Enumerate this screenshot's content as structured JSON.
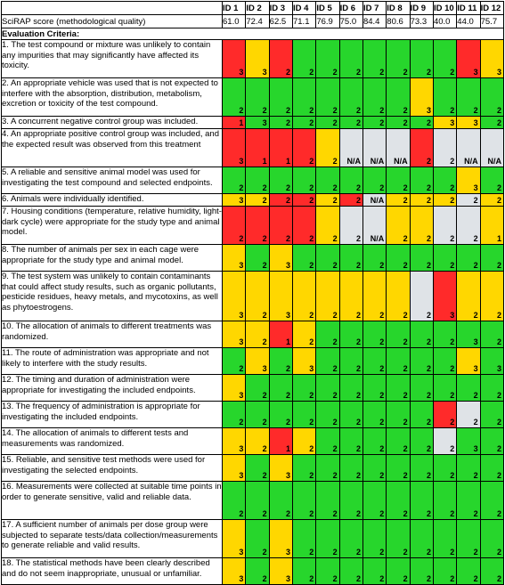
{
  "columns": [
    "ID 1",
    "ID 2",
    "ID 3",
    "ID 4",
    "ID 5",
    "ID 6",
    "ID 7",
    "ID 8",
    "ID 9",
    "ID 10",
    "ID 11",
    "ID 12"
  ],
  "score_label": "SciRAP score (methodological quality)",
  "scores": [
    "61.0",
    "72.4",
    "62.5",
    "71.1",
    "76.9",
    "75.0",
    "84.4",
    "80.6",
    "73.3",
    "40.0",
    "44.0",
    "75.7"
  ],
  "criteria_heading": "Evaluation Criteria:",
  "colors": {
    "red": "#ff2a2a",
    "yellow": "#ffd700",
    "green": "#27d62c",
    "na": "#dfe3e7"
  },
  "rows": [
    {
      "text": "1. The test compound or mixture was unlikely to contain any impurities that may significantly have affected its toxicity.",
      "values": [
        "3",
        "3",
        "2",
        "2",
        "2",
        "2",
        "2",
        "2",
        "2",
        "2",
        "3",
        "3"
      ],
      "colors": [
        "red",
        "yellow",
        "red",
        "green",
        "green",
        "green",
        "green",
        "green",
        "green",
        "green",
        "red",
        "yellow"
      ]
    },
    {
      "text": "2. An appropriate vehicle was used that is not expected to interfere with the absorption, distribution, metabolism, excretion or toxicity of the test compound.",
      "values": [
        "2",
        "2",
        "2",
        "2",
        "2",
        "2",
        "2",
        "2",
        "3",
        "2",
        "2",
        "2"
      ],
      "colors": [
        "green",
        "green",
        "green",
        "green",
        "green",
        "green",
        "green",
        "green",
        "yellow",
        "green",
        "green",
        "green"
      ]
    },
    {
      "text": "3. A concurrent negative control group was included.",
      "values": [
        "1",
        "3",
        "2",
        "2",
        "2",
        "2",
        "2",
        "2",
        "2",
        "3",
        "3",
        "2"
      ],
      "colors": [
        "red",
        "green",
        "green",
        "green",
        "green",
        "green",
        "green",
        "green",
        "green",
        "yellow",
        "yellow",
        "green"
      ]
    },
    {
      "text": "4. An appropriate positive control group was included, and the expected result was observed from this treatment",
      "values": [
        "3",
        "1",
        "1",
        "2",
        "2",
        "N/A",
        "N/A",
        "N/A",
        "2",
        "2",
        "N/A",
        "N/A"
      ],
      "colors": [
        "red",
        "red",
        "red",
        "red",
        "yellow",
        "na",
        "na",
        "na",
        "red",
        "na",
        "na",
        "na"
      ]
    },
    {
      "text": "5. A reliable and sensitive animal model was used for investigating the test compound and selected endpoints.",
      "values": [
        "2",
        "2",
        "2",
        "2",
        "2",
        "2",
        "2",
        "2",
        "2",
        "2",
        "3",
        "2"
      ],
      "colors": [
        "green",
        "green",
        "green",
        "green",
        "green",
        "green",
        "green",
        "green",
        "green",
        "green",
        "yellow",
        "green"
      ]
    },
    {
      "text": "6. Animals were individually identified.",
      "values": [
        "3",
        "2",
        "2",
        "2",
        "2",
        "2",
        "N/A",
        "2",
        "2",
        "2",
        "2",
        "2"
      ],
      "colors": [
        "yellow",
        "yellow",
        "red",
        "red",
        "yellow",
        "red",
        "na",
        "yellow",
        "yellow",
        "yellow",
        "na",
        "yellow"
      ]
    },
    {
      "text": "7. Housing conditions (temperature, relative humidity, light-dark cycle) were appropriate for the study type and animal model.",
      "values": [
        "2",
        "2",
        "2",
        "2",
        "2",
        "2",
        "N/A",
        "2",
        "2",
        "2",
        "2",
        "1"
      ],
      "colors": [
        "red",
        "red",
        "red",
        "red",
        "yellow",
        "na",
        "na",
        "yellow",
        "yellow",
        "na",
        "na",
        "yellow"
      ]
    },
    {
      "text": "8. The number of animals per sex in each cage were appropriate for the study type and animal model.",
      "values": [
        "3",
        "2",
        "3",
        "2",
        "2",
        "2",
        "2",
        "2",
        "2",
        "2",
        "2",
        "2"
      ],
      "colors": [
        "yellow",
        "green",
        "yellow",
        "green",
        "green",
        "green",
        "green",
        "green",
        "green",
        "green",
        "green",
        "green"
      ]
    },
    {
      "text": "9. The test system was unlikely to contain contaminants that could affect study results, such as organic pollutants, pesticide residues, heavy metals, and mycotoxins, as well as phytoestrogens.",
      "values": [
        "3",
        "2",
        "3",
        "2",
        "2",
        "2",
        "2",
        "2",
        "2",
        "3",
        "2",
        "2"
      ],
      "colors": [
        "yellow",
        "yellow",
        "yellow",
        "yellow",
        "yellow",
        "yellow",
        "yellow",
        "yellow",
        "na",
        "red",
        "yellow",
        "yellow"
      ]
    },
    {
      "text": "10. The allocation of animals to different treatments was randomized.",
      "values": [
        "3",
        "2",
        "1",
        "2",
        "2",
        "2",
        "2",
        "2",
        "2",
        "2",
        "3",
        "2"
      ],
      "colors": [
        "yellow",
        "yellow",
        "red",
        "yellow",
        "green",
        "green",
        "green",
        "green",
        "green",
        "green",
        "green",
        "green"
      ]
    },
    {
      "text": "11. The route of administration was appropriate and not likely to interfere with the study results.",
      "values": [
        "2",
        "3",
        "2",
        "3",
        "2",
        "2",
        "2",
        "2",
        "2",
        "2",
        "3",
        "3"
      ],
      "colors": [
        "green",
        "yellow",
        "green",
        "yellow",
        "green",
        "green",
        "green",
        "green",
        "green",
        "green",
        "yellow",
        "green"
      ]
    },
    {
      "text": "12. The timing and duration of administration were appropriate for investigating the included endpoints.",
      "values": [
        "3",
        "2",
        "2",
        "2",
        "2",
        "2",
        "2",
        "2",
        "2",
        "2",
        "2",
        "2"
      ],
      "colors": [
        "yellow",
        "green",
        "green",
        "green",
        "green",
        "green",
        "green",
        "green",
        "green",
        "green",
        "green",
        "green"
      ]
    },
    {
      "text": "13. The frequency of administration is appropriate for investigating the included endpoints.",
      "values": [
        "2",
        "2",
        "2",
        "2",
        "2",
        "2",
        "2",
        "2",
        "2",
        "2",
        "2",
        "2"
      ],
      "colors": [
        "green",
        "green",
        "green",
        "green",
        "green",
        "green",
        "green",
        "green",
        "green",
        "red",
        "na",
        "green"
      ]
    },
    {
      "text": "14. The allocation of animals to different tests and measurements was randomized.",
      "values": [
        "3",
        "2",
        "1",
        "2",
        "2",
        "2",
        "2",
        "2",
        "2",
        "2",
        "3",
        "2"
      ],
      "colors": [
        "yellow",
        "yellow",
        "red",
        "yellow",
        "green",
        "green",
        "green",
        "green",
        "green",
        "na",
        "green",
        "green"
      ]
    },
    {
      "text": "15. Reliable, and sensitive test methods were used for investigating the selected endpoints.",
      "values": [
        "3",
        "2",
        "3",
        "2",
        "2",
        "2",
        "2",
        "2",
        "2",
        "2",
        "2",
        "2"
      ],
      "colors": [
        "yellow",
        "green",
        "yellow",
        "green",
        "green",
        "green",
        "green",
        "green",
        "green",
        "green",
        "green",
        "green"
      ]
    },
    {
      "text": "16. Measurements were collected at suitable time points in order to generate sensitive, valid and reliable data.",
      "values": [
        "2",
        "2",
        "2",
        "2",
        "2",
        "2",
        "2",
        "2",
        "2",
        "2",
        "2",
        "2"
      ],
      "colors": [
        "green",
        "green",
        "green",
        "green",
        "green",
        "green",
        "green",
        "green",
        "green",
        "green",
        "green",
        "green"
      ]
    },
    {
      "text": "17. A sufficient number of animals per dose group were subjected to separate tests/data collection/measurements to generate reliable and valid results.",
      "values": [
        "3",
        "2",
        "3",
        "2",
        "2",
        "2",
        "2",
        "2",
        "2",
        "2",
        "2",
        "2"
      ],
      "colors": [
        "yellow",
        "green",
        "yellow",
        "green",
        "green",
        "green",
        "green",
        "green",
        "green",
        "green",
        "green",
        "green"
      ]
    },
    {
      "text": "18. The statistical methods have been clearly described and do not seem inappropriate, unusual or unfamiliar.",
      "values": [
        "3",
        "2",
        "3",
        "2",
        "2",
        "2",
        "2",
        "2",
        "2",
        "2",
        "2",
        "2"
      ],
      "colors": [
        "yellow",
        "green",
        "yellow",
        "green",
        "green",
        "green",
        "green",
        "green",
        "green",
        "green",
        "green",
        "green"
      ]
    }
  ]
}
